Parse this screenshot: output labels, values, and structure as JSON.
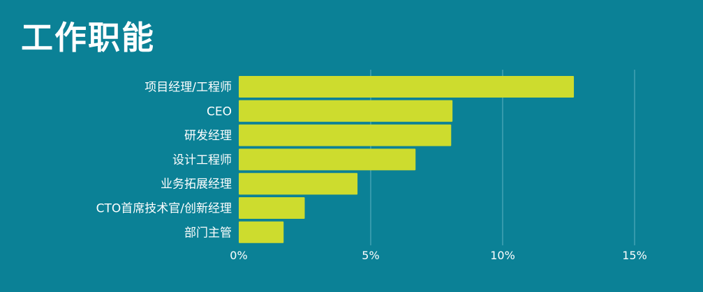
{
  "title": "工作职能",
  "chart_data": {
    "type": "bar",
    "orientation": "horizontal",
    "categories": [
      "项目经理/工程师",
      "CEO",
      "研发经理",
      "设计工程师",
      "业务拓展经理",
      "CTO首席技术官/创新经理",
      "部门主管"
    ],
    "values": [
      12.7,
      8.1,
      8.05,
      6.7,
      4.5,
      2.5,
      1.7
    ],
    "x_ticks": [
      0,
      5,
      10,
      15
    ],
    "x_tick_labels": [
      "0%",
      "5%",
      "10%",
      "15%"
    ],
    "xlim": [
      0,
      15
    ],
    "grid": true,
    "legend": "none",
    "colors": {
      "background": "#0b8196",
      "bar": "#cddc2e",
      "gridline": "#5fb3c1",
      "text": "#ffffff"
    }
  }
}
